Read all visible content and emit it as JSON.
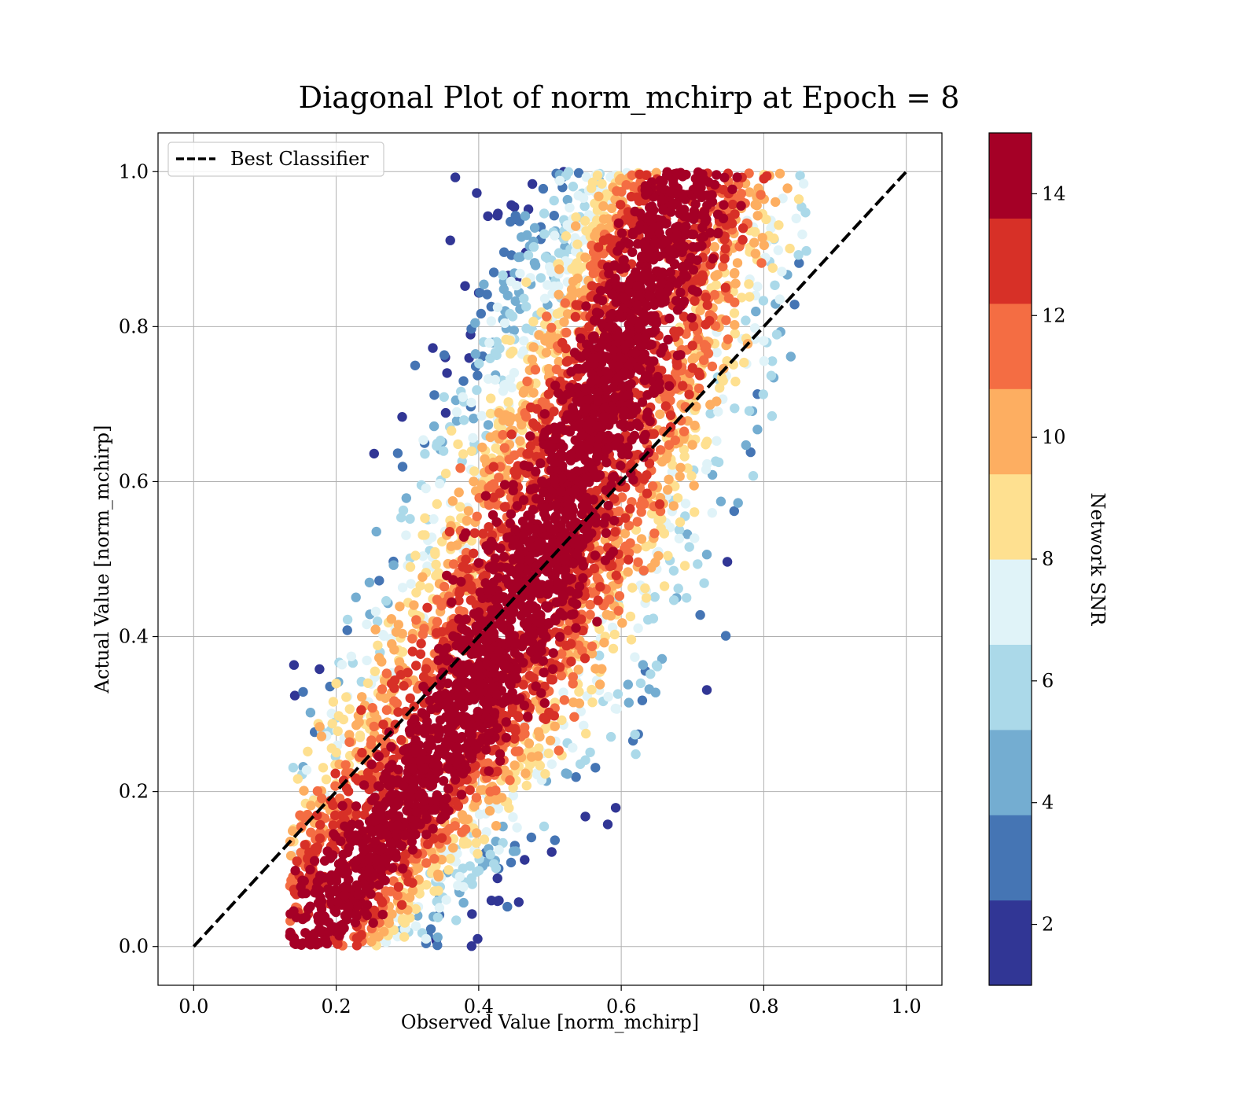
{
  "chart_data": {
    "type": "scatter",
    "title": "Diagonal Plot of norm_mchirp at Epoch = 8",
    "xlabel": "Observed Value [norm_mchirp]",
    "ylabel": "Actual Value [norm_mchirp]",
    "xlim": [
      -0.05,
      1.05
    ],
    "ylim": [
      -0.05,
      1.05
    ],
    "xticks": [
      "0.0",
      "0.2",
      "0.4",
      "0.6",
      "0.8",
      "1.0"
    ],
    "yticks": [
      "0.0",
      "0.2",
      "0.4",
      "0.6",
      "0.8",
      "1.0"
    ],
    "grid": true,
    "legend": {
      "position": "upper-left",
      "entries": [
        "Best Classifier"
      ]
    },
    "reference_line": {
      "name": "Best Classifier",
      "style": "dashed",
      "color": "#000000",
      "x": [
        0,
        1
      ],
      "y": [
        0,
        1
      ]
    },
    "scatter_description": {
      "band": "points spread around the diagonal; observed range roughly 0.14-0.85, actual range 0.0-1.0",
      "high_snr_core": "dense dark-red core along diagonal",
      "low_snr_regions": [
        "upper-left (observed 0.25-0.55, actual 0.6-1.0)",
        "lower-right (observed 0.45-0.65, actual 0.0-0.3)"
      ]
    },
    "colorbar": {
      "label": "Network SNR",
      "range": [
        1,
        15
      ],
      "ticks": [
        "2",
        "4",
        "6",
        "8",
        "10",
        "12",
        "14"
      ],
      "tick_values": [
        2,
        4,
        6,
        8,
        10,
        12,
        14
      ],
      "colormap": "RdYlBu_r (10 discrete levels)",
      "colors": [
        "#313695",
        "#4575b4",
        "#74add1",
        "#abd9e9",
        "#e0f3f8",
        "#fee090",
        "#fdae61",
        "#f46d43",
        "#d73027",
        "#a50026"
      ]
    }
  }
}
